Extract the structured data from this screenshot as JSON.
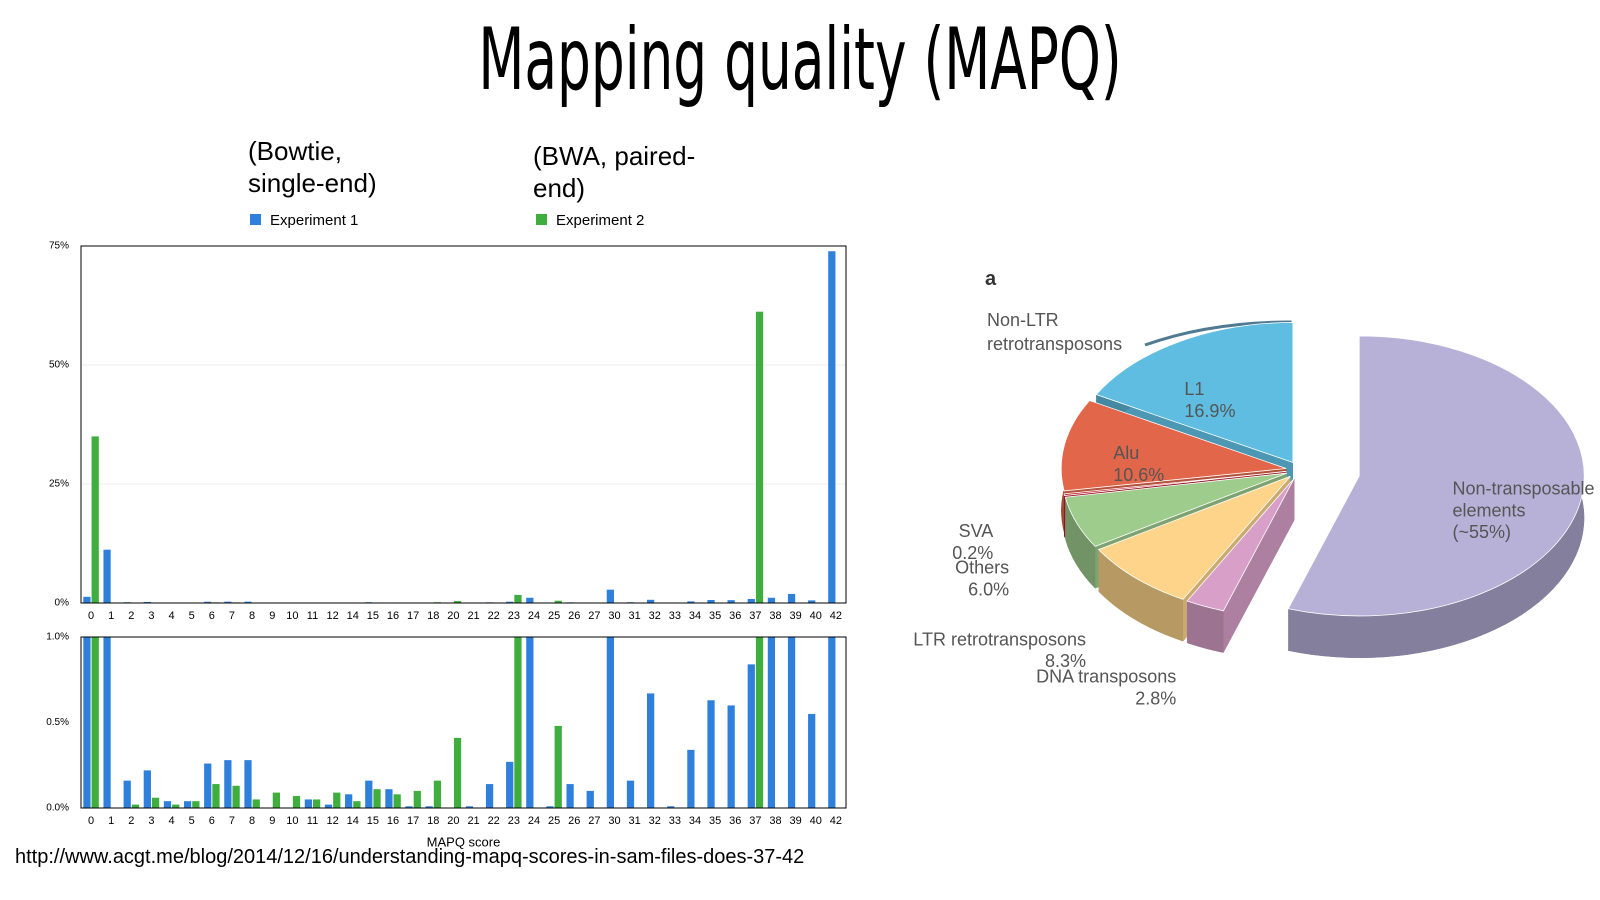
{
  "title": "Mapping quality (MAPQ)",
  "source_url": "http://www.acgt.me/blog/2014/12/16/understanding-mapq-scores-in-sam-files-does-37-42",
  "chart_data": [
    {
      "type": "bar",
      "annotations": [
        "(Bowtie, single-end)",
        "(BWA, paired-end)"
      ],
      "x_label": "MAPQ score",
      "categories": [
        "0",
        "1",
        "2",
        "3",
        "4",
        "5",
        "6",
        "7",
        "8",
        "9",
        "10",
        "11",
        "12",
        "14",
        "15",
        "16",
        "17",
        "18",
        "20",
        "21",
        "22",
        "23",
        "24",
        "25",
        "26",
        "27",
        "30",
        "31",
        "32",
        "33",
        "34",
        "35",
        "36",
        "37",
        "38",
        "39",
        "40",
        "42"
      ],
      "series": [
        {
          "name": "Experiment 1",
          "color": "#2f80dc",
          "values": [
            1.3,
            11.2,
            0.16,
            0.22,
            0.04,
            0.04,
            0.26,
            0.28,
            0.28,
            0,
            0,
            0.05,
            0.02,
            0.08,
            0.16,
            0.11,
            0.01,
            0.01,
            0,
            0.01,
            0.14,
            0.27,
            1.1,
            0.01,
            0.14,
            0.1,
            2.8,
            0.16,
            0.67,
            0.01,
            0.34,
            0.63,
            0.6,
            0.84,
            1.1,
            1.9,
            0.55,
            73.9
          ]
        },
        {
          "name": "Experiment 2",
          "color": "#3fae3f",
          "values": [
            35,
            0,
            0.02,
            0.06,
            0.02,
            0.04,
            0.14,
            0.13,
            0.05,
            0.09,
            0.07,
            0.05,
            0.09,
            0.04,
            0.11,
            0.08,
            0.1,
            0.16,
            0.41,
            0,
            0,
            1.7,
            0,
            0.48,
            0,
            0,
            0,
            0,
            0,
            0,
            0,
            0,
            0,
            61.2,
            0,
            0,
            0,
            0
          ]
        }
      ],
      "panels": [
        {
          "ylim": [
            0,
            75
          ],
          "yticks": [
            {
              "value": 0,
              "label": "0%"
            },
            {
              "value": 25,
              "label": "25%"
            },
            {
              "value": 50,
              "label": "50%"
            },
            {
              "value": 75,
              "label": "75%"
            }
          ],
          "grid": true
        },
        {
          "ylim": [
            0,
            1
          ],
          "yticks": [
            {
              "value": 0,
              "label": "0.0%"
            },
            {
              "value": 0.5,
              "label": "0.5%"
            },
            {
              "value": 1,
              "label": "1.0%"
            }
          ],
          "grid": false
        }
      ]
    },
    {
      "type": "pie",
      "panel_letter": "a",
      "group_label": "Non-LTR retrotransposons",
      "categories": [
        "Non-transposable elements",
        "DNA transposons",
        "LTR retrotransposons",
        "Others",
        "SVA",
        "Alu",
        "L1"
      ],
      "values": [
        55,
        2.8,
        8.3,
        6.0,
        0.2,
        10.6,
        16.9
      ],
      "value_labels": [
        "(~55%)",
        "2.8%",
        "8.3%",
        "6.0%",
        "0.2%",
        "10.6%",
        "16.9%"
      ],
      "colors": [
        "#b7b1d8",
        "#d8a0c9",
        "#fdd48a",
        "#9dcc8c",
        "#c0182c",
        "#e2664a",
        "#5ebde1"
      ]
    }
  ]
}
